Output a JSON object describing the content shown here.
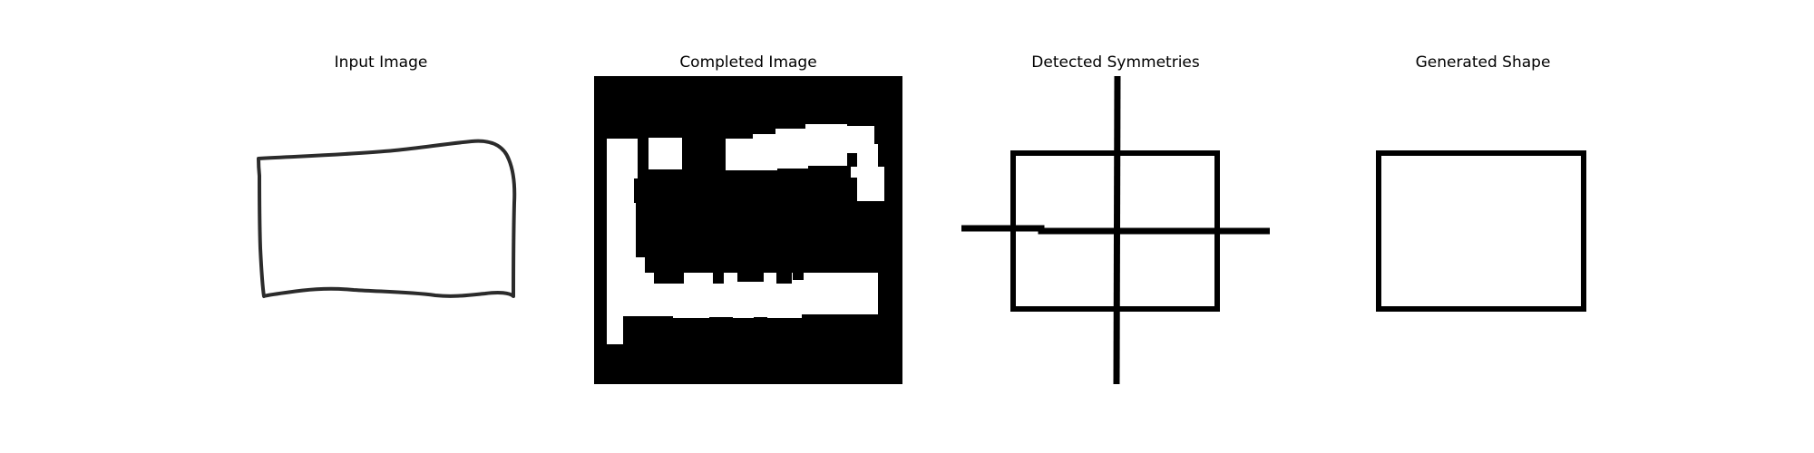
{
  "figure": {
    "panels": [
      {
        "title": "Input Image"
      },
      {
        "title": "Completed Image"
      },
      {
        "title": "Detected Symmetries"
      },
      {
        "title": "Generated Shape"
      }
    ]
  },
  "colors": {
    "background": "#ffffff",
    "stroke": "#000000",
    "sketch_stroke": "#2b2b2b",
    "completed_background": "#000000",
    "completed_fill": "#ffffff"
  }
}
